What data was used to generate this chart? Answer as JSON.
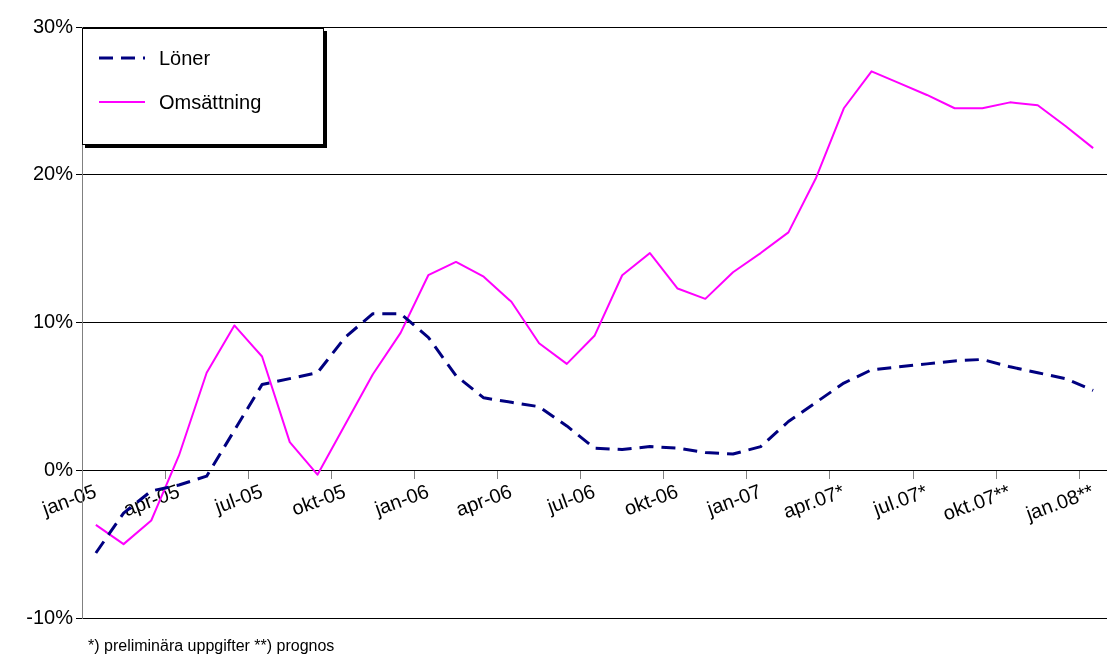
{
  "chart_data": {
    "type": "line",
    "categories": [
      "jan-05",
      null,
      null,
      "apr-05",
      null,
      null,
      "jul-05",
      null,
      null,
      "okt-05",
      null,
      null,
      "jan-06",
      null,
      null,
      "apr-06",
      null,
      null,
      "jul-06",
      null,
      null,
      "okt-06",
      null,
      null,
      "jan-07",
      null,
      null,
      "apr.07*",
      null,
      null,
      "jul.07*",
      null,
      null,
      "okt.07**",
      null,
      null,
      "jan.08**"
    ],
    "series": [
      {
        "name": "Löner",
        "color": "#000080",
        "line_style": "dashed",
        "values": [
          -5.6,
          -2.9,
          -1.4,
          -1.0,
          -0.4,
          2.7,
          5.8,
          6.2,
          6.6,
          9.0,
          10.6,
          10.6,
          9.0,
          6.4,
          4.9,
          4.6,
          4.3,
          3.0,
          1.5,
          1.4,
          1.6,
          1.5,
          1.2,
          1.1,
          1.6,
          3.3,
          4.6,
          5.9,
          6.8,
          7.0,
          7.2,
          7.4,
          7.5,
          7.0,
          6.6,
          6.2,
          5.4
        ]
      },
      {
        "name": "Omsättning",
        "color": "#ff00ff",
        "line_style": "solid",
        "values": [
          -3.7,
          -5.0,
          -3.4,
          1.0,
          6.6,
          9.8,
          7.7,
          1.9,
          -0.3,
          3.1,
          6.5,
          9.3,
          13.2,
          14.1,
          13.1,
          11.4,
          8.6,
          7.2,
          9.1,
          13.2,
          14.7,
          12.3,
          11.6,
          13.4,
          14.7,
          16.1,
          19.8,
          24.5,
          27.0,
          26.2,
          25.4,
          24.5,
          24.5,
          24.9,
          24.7,
          23.3,
          21.8
        ]
      }
    ],
    "ylim": [
      -10,
      30
    ],
    "yticks": [
      {
        "value": -10,
        "label": "-10%"
      },
      {
        "value": 0,
        "label": "0%"
      },
      {
        "value": 10,
        "label": "10%"
      },
      {
        "value": 20,
        "label": "20%"
      },
      {
        "value": 30,
        "label": "30%"
      }
    ],
    "grid": "y",
    "legend": "top left",
    "marker": "none",
    "annotations": [
      "*) preliminära uppgifter **) prognos"
    ]
  }
}
